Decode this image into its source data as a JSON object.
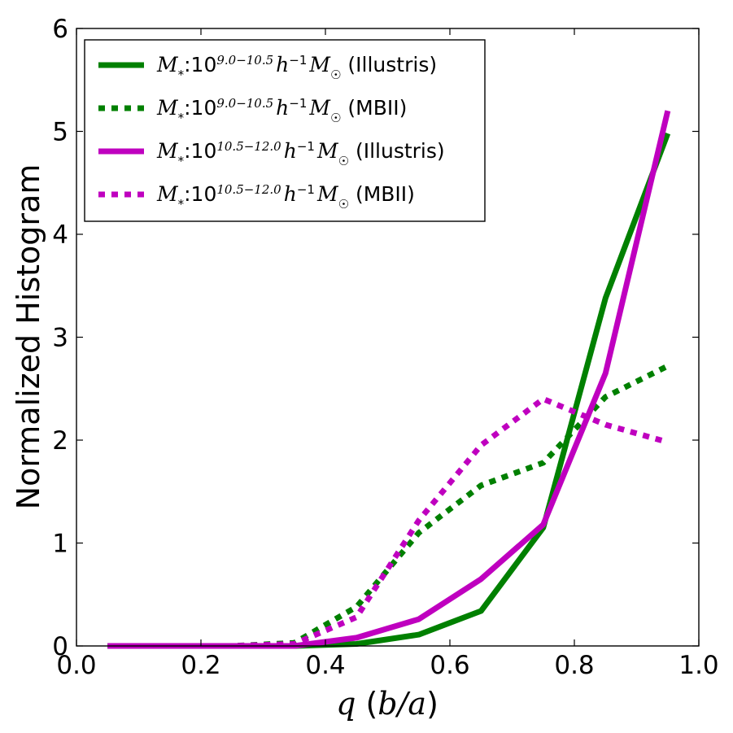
{
  "chart_data": {
    "type": "line",
    "xlabel": "q (b/a)",
    "ylabel": "Normalized Histogram",
    "xlim": [
      0.0,
      1.0
    ],
    "ylim": [
      0,
      6
    ],
    "x_ticks": [
      "0.0",
      "0.2",
      "0.4",
      "0.6",
      "0.8",
      "1.0"
    ],
    "y_ticks": [
      "0",
      "1",
      "2",
      "3",
      "4",
      "5",
      "6"
    ],
    "legend_position": "upper-left",
    "x": [
      0.05,
      0.15,
      0.25,
      0.35,
      0.45,
      0.55,
      0.65,
      0.75,
      0.85,
      0.95
    ],
    "series": [
      {
        "name": "M*:10^{9.0-10.5} h^{-1} M☉ (Illustris)",
        "math_prefix": "M",
        "math_sub": "*",
        "exponent": "9.0−10.5",
        "suffix": "(Illustris)",
        "color": "#008000",
        "style": "solid",
        "values": [
          0.0,
          0.0,
          0.0,
          0.0,
          0.02,
          0.11,
          0.34,
          1.15,
          3.38,
          4.98
        ]
      },
      {
        "name": "M*:10^{9.0-10.5} h^{-1} M☉ (MBII)",
        "math_prefix": "M",
        "math_sub": "*",
        "exponent": "9.0−10.5",
        "suffix": "(MBII)",
        "color": "#008000",
        "style": "dotted",
        "values": [
          0.0,
          0.0,
          0.0,
          0.03,
          0.38,
          1.1,
          1.56,
          1.78,
          2.42,
          2.72
        ]
      },
      {
        "name": "M*:10^{10.5-12.0} h^{-1} M☉ (Illustris)",
        "math_prefix": "M",
        "math_sub": "*",
        "exponent": "10.5−12.0",
        "suffix": "(Illustris)",
        "color": "#bf00bf",
        "style": "solid",
        "values": [
          0.0,
          0.0,
          0.0,
          0.0,
          0.08,
          0.26,
          0.65,
          1.18,
          2.65,
          5.2
        ]
      },
      {
        "name": "M*:10^{10.5-12.0} h^{-1} M☉ (MBII)",
        "math_prefix": "M",
        "math_sub": "*",
        "exponent": "10.5−12.0",
        "suffix": "(MBII)",
        "color": "#bf00bf",
        "style": "dotted",
        "values": [
          0.0,
          0.0,
          0.0,
          0.02,
          0.28,
          1.22,
          1.95,
          2.4,
          2.15,
          1.98
        ]
      }
    ]
  }
}
